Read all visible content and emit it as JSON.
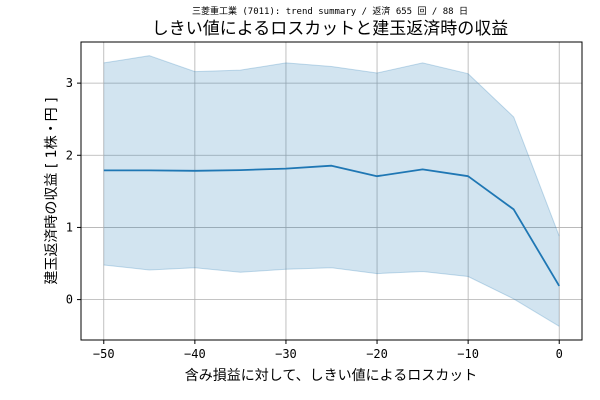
{
  "chart_data": {
    "type": "line",
    "suptitle": "三菱重工業 (7011): trend summary / 返済 655 回 / 88 日",
    "title": "しきい値によるロスカットと建玉返済時の収益",
    "xlabel": "含み損益に対して、しきい値によるロスカット",
    "ylabel": "建玉返済時の収益 [ 1株・円 ]",
    "x": [
      -50,
      -45,
      -40,
      -35,
      -30,
      -25,
      -20,
      -15,
      -10,
      -5,
      0
    ],
    "series": [
      {
        "mean": [
          1.79,
          1.79,
          1.785,
          1.795,
          1.815,
          1.855,
          1.71,
          1.805,
          1.71,
          1.25,
          0.19
        ],
        "upper": [
          3.28,
          3.38,
          3.16,
          3.18,
          3.28,
          3.23,
          3.14,
          3.28,
          3.13,
          2.53,
          0.88
        ],
        "lower": [
          0.48,
          0.41,
          0.44,
          0.38,
          0.42,
          0.44,
          0.36,
          0.39,
          0.32,
          0.01,
          -0.37
        ],
        "color": "#1f77b4",
        "band_color": "#1f77b4"
      }
    ],
    "xlim": [
      -52.5,
      2.5
    ],
    "ylim": [
      -0.56,
      3.57
    ],
    "xticks": [
      "−50",
      "−40",
      "−30",
      "−20",
      "−10",
      "0"
    ],
    "xtick_values": [
      -50,
      -40,
      -30,
      -20,
      -10,
      0
    ],
    "yticks": [
      "0",
      "1",
      "2",
      "3"
    ],
    "ytick_values": [
      0,
      1,
      2,
      3
    ],
    "grid": true
  }
}
